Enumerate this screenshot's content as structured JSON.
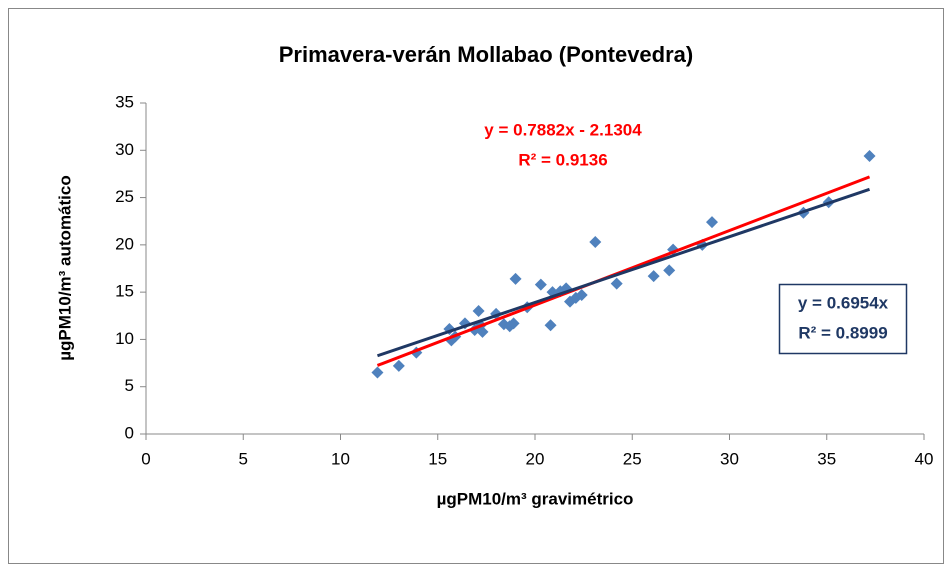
{
  "chart_data": {
    "type": "scatter",
    "title": "Primavera-verán Mollabao (Pontevedra)",
    "x_label": "µgPM10/m³ gravimétrico",
    "y_label": "µgPM10/m³ automático",
    "color": "#4f81bd",
    "x": [
      11.9,
      13.0,
      13.9,
      15.6,
      15.7,
      15.9,
      16.4,
      16.9,
      17.1,
      17.2,
      17.3,
      18.0,
      18.4,
      18.7,
      18.9,
      19.0,
      19.6,
      20.3,
      20.8,
      20.9,
      21.3,
      21.6,
      21.8,
      22.1,
      22.4,
      23.1,
      24.2,
      26.1,
      26.9,
      27.1,
      28.6,
      29.1,
      33.8,
      35.1,
      37.2
    ],
    "values": [
      6.5,
      7.2,
      8.6,
      11.1,
      9.9,
      10.3,
      11.7,
      11.0,
      13.0,
      11.5,
      10.8,
      12.7,
      11.6,
      11.4,
      11.7,
      16.4,
      13.4,
      15.8,
      11.5,
      15.0,
      15.1,
      15.4,
      14.0,
      14.4,
      14.7,
      20.3,
      15.9,
      16.7,
      17.3,
      19.5,
      20.0,
      22.4,
      23.4,
      24.5,
      29.4
    ],
    "xlim": [
      0,
      40
    ],
    "xticks": [
      0,
      5,
      10,
      15,
      20,
      25,
      30,
      35,
      40
    ],
    "ylim": [
      0,
      35
    ],
    "yticks": [
      0,
      5,
      10,
      15,
      20,
      25,
      30,
      35
    ],
    "trendlines": [
      {
        "slope": 0.7882,
        "intercept": -2.1304,
        "color": "#ff0000",
        "equation": "y = 0.7882x - 2.1304",
        "r2_label": "R² = 0.9136",
        "r2": 0.9136
      },
      {
        "slope": 0.6954,
        "intercept": 0,
        "color": "#1f3864",
        "equation": "y = 0.6954x",
        "r2_label": "R² = 0.8999",
        "r2": 0.8999
      }
    ]
  }
}
